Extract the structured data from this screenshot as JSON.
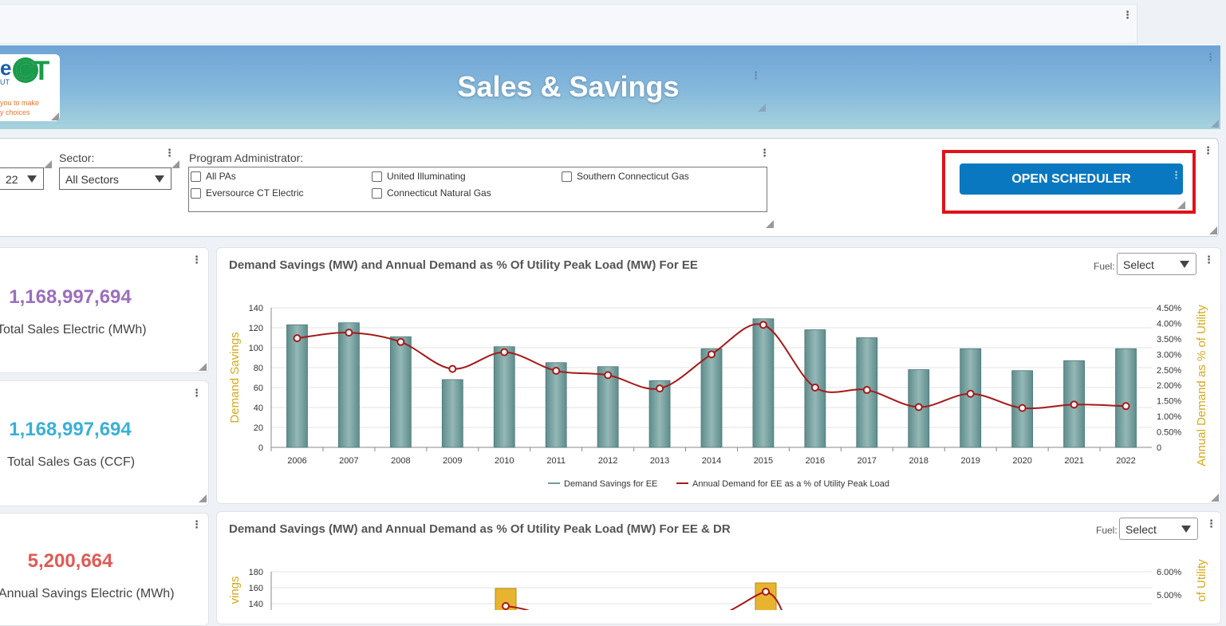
{
  "banner": {
    "title": "Sales & Savings"
  },
  "logo": {
    "big_letters": "CT",
    "partial_letter": "e",
    "subtitle": "UT",
    "tagline_1": "you to make",
    "tagline_2": "y choices"
  },
  "filters": {
    "year_value": "22",
    "sector_label": "Sector:",
    "sector_value": "All Sectors",
    "pa_label": "Program Administrator:",
    "pa_options": [
      "All PAs",
      "Eversource CT Electric",
      "United Illuminating",
      "Connecticut Natural Gas",
      "Southern Connecticut Gas"
    ]
  },
  "scheduler": {
    "label": "OPEN SCHEDULER"
  },
  "stats": [
    {
      "value": "1,168,997,694",
      "label": "Total Sales Electric (MWh)",
      "color": "#9a6fbf"
    },
    {
      "value": "1,168,997,694",
      "label": "Total Sales Gas (CCF)",
      "color": "#3ab0d6"
    },
    {
      "value": "5,200,664",
      "label": "Annual Savings Electric (MWh)",
      "color": "#e05a55"
    }
  ],
  "chart1_header": {
    "title": "Demand Savings (MW) and Annual Demand as % Of Utility Peak Load (MW) For EE",
    "fuel_label": "Fuel:",
    "fuel_value": "Select"
  },
  "chart2_header": {
    "title": "Demand Savings (MW) and Annual Demand as % Of Utility Peak Load (MW) For EE & DR",
    "fuel_label": "Fuel:",
    "fuel_value": "Select"
  },
  "chart_data": [
    {
      "type": "bar",
      "title": "Demand Savings (MW) and Annual Demand as % Of Utility Peak Load (MW) For EE",
      "ylabel": "Demand Savings",
      "y2label": "Annual Demand as % of Utility",
      "categories": [
        "2006",
        "2007",
        "2008",
        "2009",
        "2010",
        "2011",
        "2012",
        "2013",
        "2014",
        "2015",
        "2016",
        "2017",
        "2018",
        "2019",
        "2020",
        "2021",
        "2022"
      ],
      "ylim": [
        0,
        140
      ],
      "yticks": [
        "0",
        "20",
        "40",
        "60",
        "80",
        "100",
        "120",
        "140"
      ],
      "y2lim": [
        0,
        4.5
      ],
      "y2ticks": [
        "0",
        "0.50%",
        "1.00%",
        "1.50%",
        "2.00%",
        "2.50%",
        "3.00%",
        "3.50%",
        "4.00%",
        "4.50%"
      ],
      "series": [
        {
          "name": "Demand Savings for EE",
          "type": "bar",
          "color": "#6f9b9b",
          "values": [
            123,
            125,
            111,
            68,
            101,
            85,
            81,
            67,
            99,
            129,
            118,
            110,
            78,
            99,
            77,
            87,
            99
          ]
        },
        {
          "name": "Annual Demand for EE as a % of Utility Peak Load",
          "type": "line",
          "color": "#a51a1a",
          "values": [
            3.52,
            3.7,
            3.4,
            2.53,
            3.07,
            2.47,
            2.33,
            1.9,
            3.0,
            3.95,
            1.93,
            1.85,
            1.3,
            1.73,
            1.27,
            1.38,
            1.33
          ]
        }
      ],
      "grid": true,
      "legend": "bottom"
    },
    {
      "type": "bar",
      "title": "Demand Savings (MW) and Annual Demand as % Of Utility Peak Load (MW) For EE & DR",
      "ylabel_visible": "vings",
      "y2label_visible": "of Utility",
      "ylim": [
        0,
        180
      ],
      "yticks_visible": [
        "140",
        "160",
        "180"
      ],
      "y2lim": [
        0,
        6
      ],
      "y2ticks_visible": [
        "5.00%",
        "6.00%"
      ],
      "grid": true
    }
  ]
}
